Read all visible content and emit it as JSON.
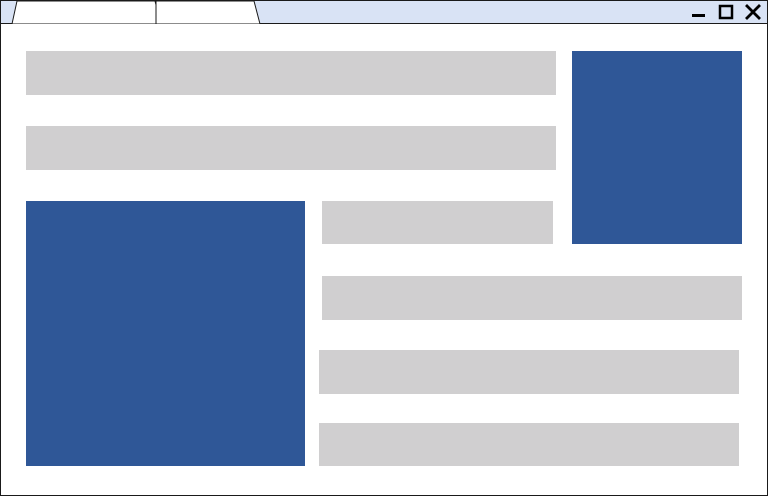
{
  "window": {
    "tabs": [
      {
        "label": ""
      },
      {
        "label": ""
      }
    ],
    "controls": [
      "minimize-icon",
      "maximize-icon",
      "close-icon"
    ]
  },
  "content": {
    "placeholder_blocks": 7,
    "image_placeholders": 2
  },
  "colors": {
    "titlebar": "#d9e3f5",
    "text_placeholder": "#d0cfd0",
    "image_placeholder": "#2f5797",
    "border": "#1a1a1a"
  }
}
